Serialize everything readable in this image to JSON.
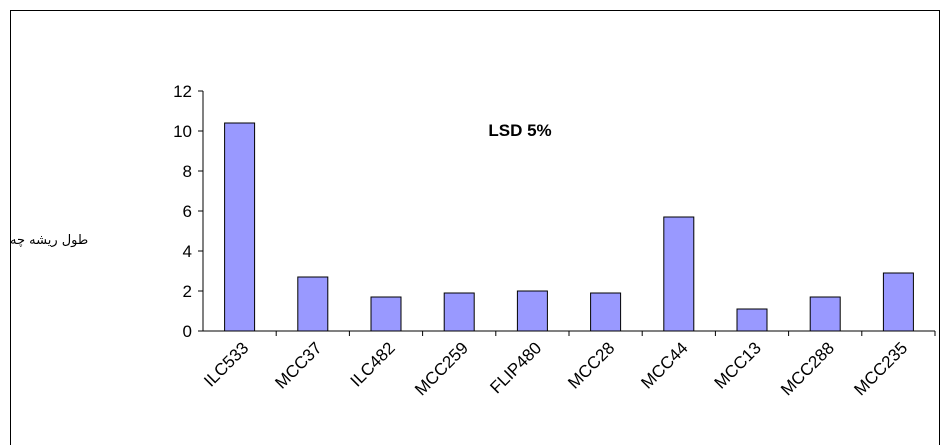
{
  "chart_data": {
    "type": "bar",
    "title": "",
    "annotation": "LSD 5%",
    "xlabel": "",
    "ylabel": "طول ریشه چه",
    "categories": [
      "ILC533",
      "MCC37",
      "ILC482",
      "MCC259",
      "FLIP480",
      "MCC28",
      "MCC44",
      "MCC13",
      "MCC288",
      "MCC235"
    ],
    "values": [
      10.4,
      2.7,
      1.7,
      1.9,
      2.0,
      1.9,
      5.7,
      1.1,
      1.7,
      2.9
    ],
    "ylim": [
      0,
      12
    ],
    "yticks": [
      0,
      2,
      4,
      6,
      8,
      10,
      12
    ],
    "grid": false,
    "legend": "none",
    "bar_color": "#9999ff",
    "bar_stroke": "#000000"
  }
}
